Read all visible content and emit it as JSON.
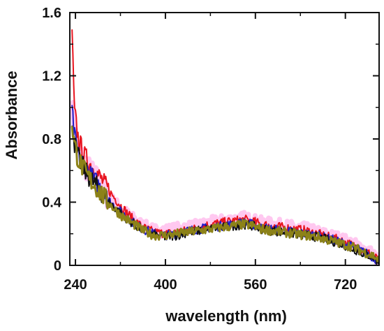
{
  "chart_data": {
    "type": "line",
    "title": "",
    "xlabel": "wavelength (nm)",
    "ylabel": "Absorbance",
    "xlim": [
      230,
      780
    ],
    "ylim": [
      0,
      1.6
    ],
    "x_ticks": [
      240,
      400,
      560,
      720
    ],
    "y_ticks": [
      0,
      0.4,
      0.8,
      1.2,
      1.6
    ],
    "y_tick_labels": [
      "0",
      "0.4",
      "0.8",
      "1.2",
      "1.6"
    ],
    "grid": false,
    "legend": "none",
    "noise_amplitude": 0.03,
    "series": [
      {
        "color": "#ffc8f0",
        "stroke_width": 7,
        "points": [
          [
            234,
            1.02
          ],
          [
            238,
            0.86
          ],
          [
            245,
            0.73
          ],
          [
            260,
            0.62
          ],
          [
            280,
            0.53
          ],
          [
            300,
            0.43
          ],
          [
            320,
            0.36
          ],
          [
            340,
            0.3
          ],
          [
            360,
            0.25
          ],
          [
            380,
            0.22
          ],
          [
            400,
            0.22
          ],
          [
            420,
            0.23
          ],
          [
            440,
            0.24
          ],
          [
            460,
            0.25
          ],
          [
            480,
            0.27
          ],
          [
            500,
            0.28
          ],
          [
            520,
            0.29
          ],
          [
            540,
            0.3
          ],
          [
            550,
            0.29
          ],
          [
            570,
            0.27
          ],
          [
            590,
            0.26
          ],
          [
            610,
            0.25
          ],
          [
            630,
            0.24
          ],
          [
            650,
            0.23
          ],
          [
            670,
            0.21
          ],
          [
            690,
            0.19
          ],
          [
            710,
            0.17
          ],
          [
            730,
            0.14
          ],
          [
            750,
            0.11
          ],
          [
            770,
            0.07
          ],
          [
            780,
            0.02
          ]
        ]
      },
      {
        "color": "#e8141e",
        "stroke_width": 2,
        "points": [
          [
            234,
            1.5
          ],
          [
            236,
            1.22
          ],
          [
            238,
            0.98
          ],
          [
            245,
            0.8
          ],
          [
            255,
            0.7
          ],
          [
            270,
            0.62
          ],
          [
            285,
            0.55
          ],
          [
            300,
            0.47
          ],
          [
            320,
            0.38
          ],
          [
            340,
            0.3
          ],
          [
            360,
            0.24
          ],
          [
            380,
            0.21
          ],
          [
            400,
            0.2
          ],
          [
            420,
            0.21
          ],
          [
            440,
            0.22
          ],
          [
            460,
            0.24
          ],
          [
            480,
            0.26
          ],
          [
            500,
            0.27
          ],
          [
            520,
            0.28
          ],
          [
            540,
            0.29
          ],
          [
            555,
            0.28
          ],
          [
            570,
            0.26
          ],
          [
            590,
            0.25
          ],
          [
            610,
            0.24
          ],
          [
            630,
            0.23
          ],
          [
            650,
            0.22
          ],
          [
            670,
            0.2
          ],
          [
            690,
            0.18
          ],
          [
            710,
            0.16
          ],
          [
            730,
            0.13
          ],
          [
            750,
            0.1
          ],
          [
            770,
            0.06
          ],
          [
            780,
            0.03
          ]
        ]
      },
      {
        "color": "#1e1ec8",
        "stroke_width": 2,
        "points": [
          [
            234,
            0.98
          ],
          [
            238,
            0.82
          ],
          [
            245,
            0.7
          ],
          [
            260,
            0.6
          ],
          [
            280,
            0.51
          ],
          [
            300,
            0.41
          ],
          [
            320,
            0.34
          ],
          [
            340,
            0.28
          ],
          [
            360,
            0.23
          ],
          [
            380,
            0.2
          ],
          [
            400,
            0.19
          ],
          [
            420,
            0.2
          ],
          [
            440,
            0.22
          ],
          [
            460,
            0.23
          ],
          [
            480,
            0.24
          ],
          [
            500,
            0.25
          ],
          [
            520,
            0.26
          ],
          [
            540,
            0.27
          ],
          [
            555,
            0.26
          ],
          [
            570,
            0.24
          ],
          [
            590,
            0.23
          ],
          [
            610,
            0.22
          ],
          [
            630,
            0.21
          ],
          [
            650,
            0.2
          ],
          [
            670,
            0.19
          ],
          [
            690,
            0.17
          ],
          [
            710,
            0.15
          ],
          [
            730,
            0.12
          ],
          [
            750,
            0.09
          ],
          [
            770,
            0.05
          ],
          [
            780,
            0.02
          ]
        ]
      },
      {
        "color": "#111111",
        "stroke_width": 2,
        "points": [
          [
            234,
            0.92
          ],
          [
            238,
            0.78
          ],
          [
            245,
            0.68
          ],
          [
            260,
            0.58
          ],
          [
            280,
            0.49
          ],
          [
            300,
            0.4
          ],
          [
            320,
            0.33
          ],
          [
            340,
            0.27
          ],
          [
            360,
            0.22
          ],
          [
            380,
            0.19
          ],
          [
            400,
            0.18
          ],
          [
            420,
            0.19
          ],
          [
            440,
            0.21
          ],
          [
            460,
            0.22
          ],
          [
            480,
            0.23
          ],
          [
            500,
            0.24
          ],
          [
            520,
            0.25
          ],
          [
            540,
            0.26
          ],
          [
            555,
            0.25
          ],
          [
            570,
            0.23
          ],
          [
            590,
            0.22
          ],
          [
            610,
            0.21
          ],
          [
            630,
            0.2
          ],
          [
            650,
            0.19
          ],
          [
            670,
            0.18
          ],
          [
            690,
            0.16
          ],
          [
            710,
            0.14
          ],
          [
            730,
            0.11
          ],
          [
            750,
            0.08
          ],
          [
            770,
            0.05
          ],
          [
            780,
            0.02
          ]
        ]
      },
      {
        "color": "#8c8218",
        "stroke_width": 3,
        "points": [
          [
            234,
            0.9
          ],
          [
            238,
            0.77
          ],
          [
            245,
            0.67
          ],
          [
            260,
            0.57
          ],
          [
            280,
            0.48
          ],
          [
            300,
            0.39
          ],
          [
            320,
            0.32
          ],
          [
            340,
            0.27
          ],
          [
            360,
            0.22
          ],
          [
            380,
            0.19
          ],
          [
            400,
            0.19
          ],
          [
            420,
            0.2
          ],
          [
            440,
            0.21
          ],
          [
            460,
            0.22
          ],
          [
            480,
            0.23
          ],
          [
            500,
            0.24
          ],
          [
            520,
            0.25
          ],
          [
            540,
            0.26
          ],
          [
            555,
            0.25
          ],
          [
            570,
            0.23
          ],
          [
            590,
            0.22
          ],
          [
            610,
            0.21
          ],
          [
            630,
            0.2
          ],
          [
            650,
            0.19
          ],
          [
            670,
            0.18
          ],
          [
            690,
            0.16
          ],
          [
            710,
            0.14
          ],
          [
            730,
            0.12
          ],
          [
            750,
            0.09
          ],
          [
            770,
            0.06
          ],
          [
            780,
            0.03
          ]
        ]
      }
    ]
  }
}
